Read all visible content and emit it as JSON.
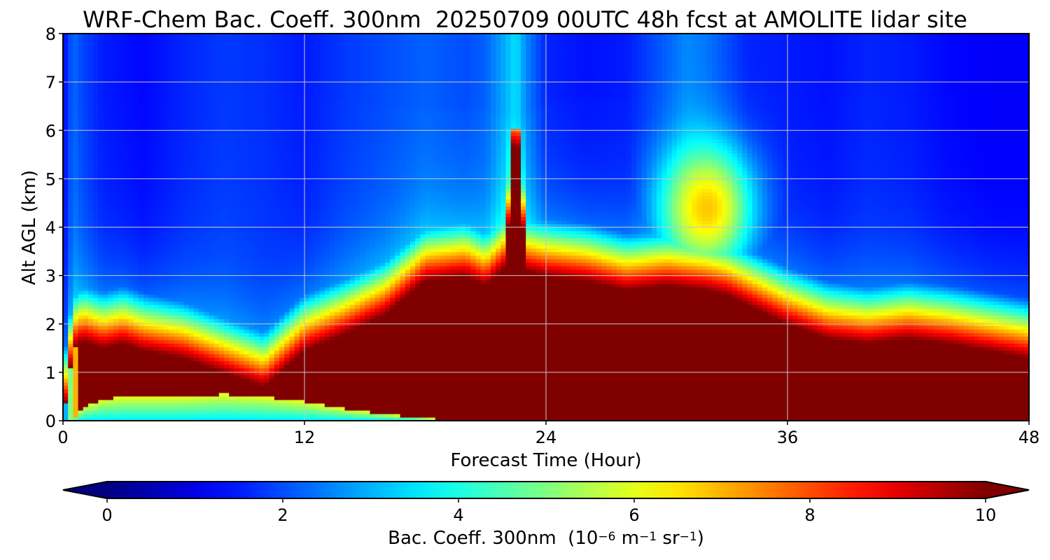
{
  "chart_data": {
    "type": "heatmap",
    "title": "WRF-Chem Bac. Coeff. 300nm  20250709 00UTC 48h fcst at AMOLITE lidar site",
    "xlabel": "Forecast Time (Hour)",
    "ylabel": "Alt AGL (km)",
    "xlim": [
      0,
      48
    ],
    "ylim": [
      0,
      8
    ],
    "xticks": [
      0,
      12,
      24,
      36,
      48
    ],
    "yticks": [
      0,
      1,
      2,
      3,
      4,
      5,
      6,
      7,
      8
    ],
    "grid": true,
    "colormap": "jet",
    "colorbar": {
      "orientation": "horizontal",
      "extend": "both",
      "vmin": 0,
      "vmax": 10,
      "ticks": [
        0,
        2,
        4,
        6,
        8,
        10
      ],
      "label_main": "Bac. Coeff. 300nm  (10",
      "label_exp1": "−6",
      "label_mid": " m",
      "label_exp2": "−1",
      "label_mid2": " sr",
      "label_exp3": "−1",
      "label_end": ")"
    },
    "field": {
      "hours": [
        0,
        0.5,
        1,
        2,
        3,
        4,
        6,
        8,
        10,
        12,
        14,
        16,
        18,
        20,
        21,
        22,
        22.5,
        23,
        24,
        26,
        28,
        30,
        31,
        32,
        33,
        34,
        36,
        38,
        40,
        42,
        44,
        46,
        48
      ],
      "altitudes_km": [
        0,
        0.25,
        0.5,
        0.75,
        1,
        1.25,
        1.5,
        1.75,
        2,
        2.25,
        2.5,
        2.75,
        3,
        3.25,
        3.5,
        3.75,
        4,
        4.25,
        4.5,
        4.75,
        5,
        5.25,
        5.5,
        5.75,
        6,
        6.25,
        6.5,
        6.75,
        7,
        7.25,
        7.5,
        7.75,
        8
      ],
      "approx_values_note_free": true,
      "boundary_layer_top_km": [
        0.0,
        1.5,
        1.65,
        1.5,
        1.6,
        1.45,
        1.3,
        1.0,
        0.7,
        1.45,
        1.8,
        2.2,
        2.9,
        3.0,
        2.8,
        3.2,
        6.5,
        3.1,
        3.0,
        2.9,
        2.7,
        2.8,
        2.75,
        2.7,
        2.6,
        2.4,
        2.0,
        1.7,
        1.6,
        1.7,
        1.6,
        1.45,
        1.3
      ],
      "near_surface_min_top_km": [
        0.0,
        0.0,
        0.3,
        0.45,
        0.5,
        0.5,
        0.5,
        0.55,
        0.5,
        0.4,
        0.25,
        0.15,
        0.05,
        0,
        0,
        0,
        0,
        0,
        0,
        0,
        0,
        0,
        0,
        0,
        0,
        0,
        0,
        0,
        0,
        0,
        0,
        0,
        0
      ],
      "upper_background": [
        1.2,
        2.3,
        1.9,
        1.5,
        1.4,
        1.3,
        1.6,
        1.8,
        1.7,
        1.5,
        1.8,
        2.0,
        2.2,
        2.0,
        2.2,
        3.0,
        3.5,
        2.6,
        1.6,
        1.4,
        1.5,
        2.2,
        2.6,
        2.4,
        2.0,
        1.6,
        1.5,
        1.4,
        1.6,
        1.5,
        1.3,
        1.2,
        1.2
      ],
      "elevated_plume": {
        "hour": 32,
        "alt_km": 4.4,
        "peak": 6.8,
        "width_h": 1.6,
        "height_km": 0.9
      }
    }
  }
}
